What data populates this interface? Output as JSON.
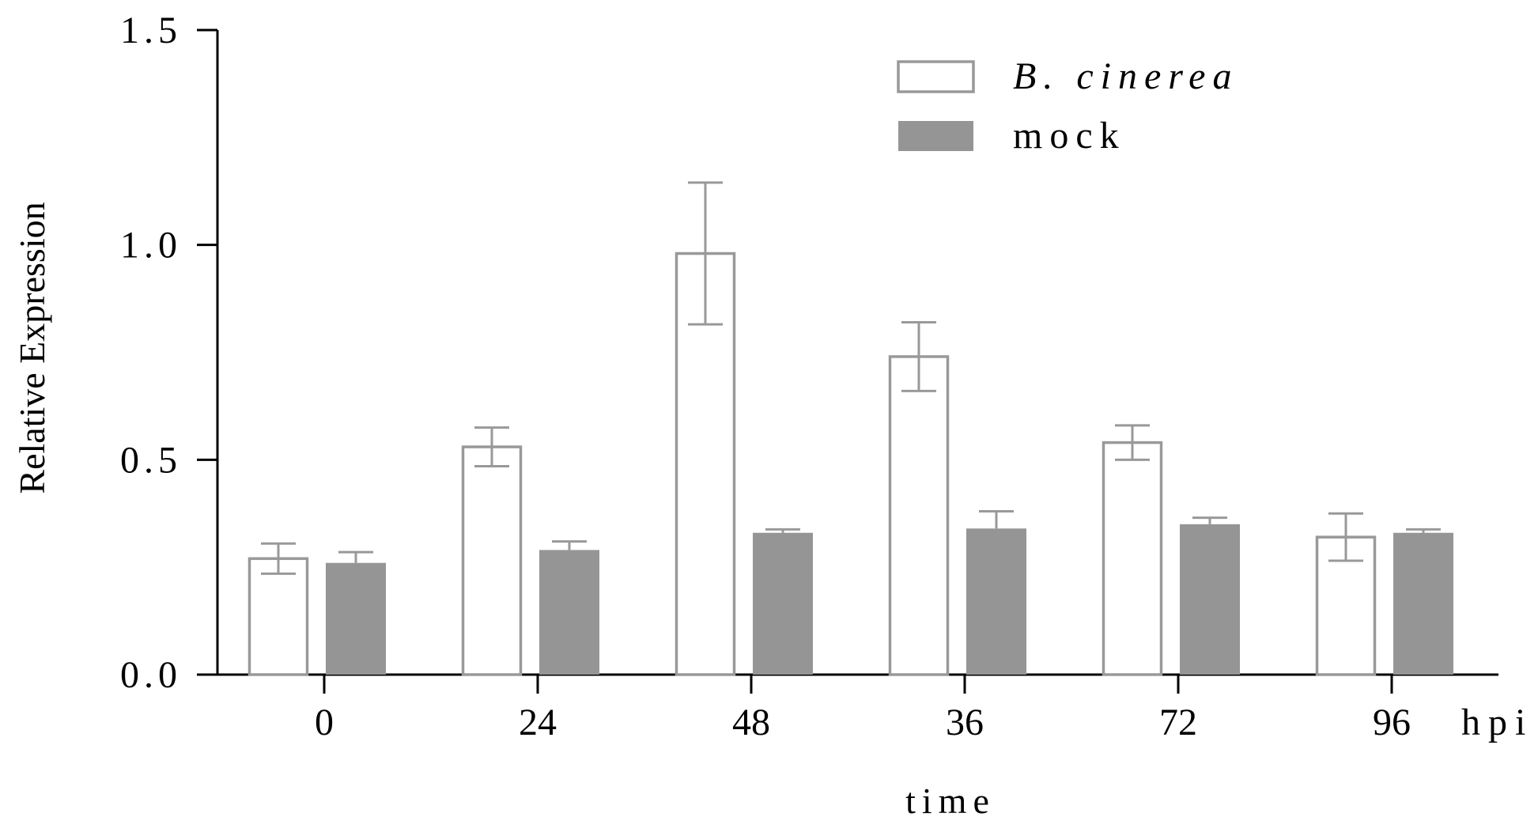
{
  "chart_data": {
    "type": "bar",
    "categories": [
      "0",
      "24",
      "48",
      "36",
      "72",
      "96"
    ],
    "x_unit": "hpi",
    "xlabel": "time",
    "ylabel": "Relative Expression",
    "ylim": [
      0,
      1.5
    ],
    "yticks": [
      "0.0",
      "0.5",
      "1.0",
      "1.5"
    ],
    "grid": false,
    "legend_position": "top-right",
    "series": [
      {
        "name": "B. cinerea",
        "style": "outline",
        "color": "#999999",
        "values": [
          0.27,
          0.53,
          0.98,
          0.74,
          0.54,
          0.32
        ],
        "errors": [
          0.035,
          0.045,
          0.165,
          0.08,
          0.04,
          0.055
        ]
      },
      {
        "name": "mock",
        "style": "filled",
        "color": "#959595",
        "values": [
          0.26,
          0.29,
          0.33,
          0.34,
          0.35,
          0.33
        ],
        "errors": [
          0.025,
          0.02,
          0.008,
          0.04,
          0.015,
          0.008
        ]
      }
    ]
  }
}
